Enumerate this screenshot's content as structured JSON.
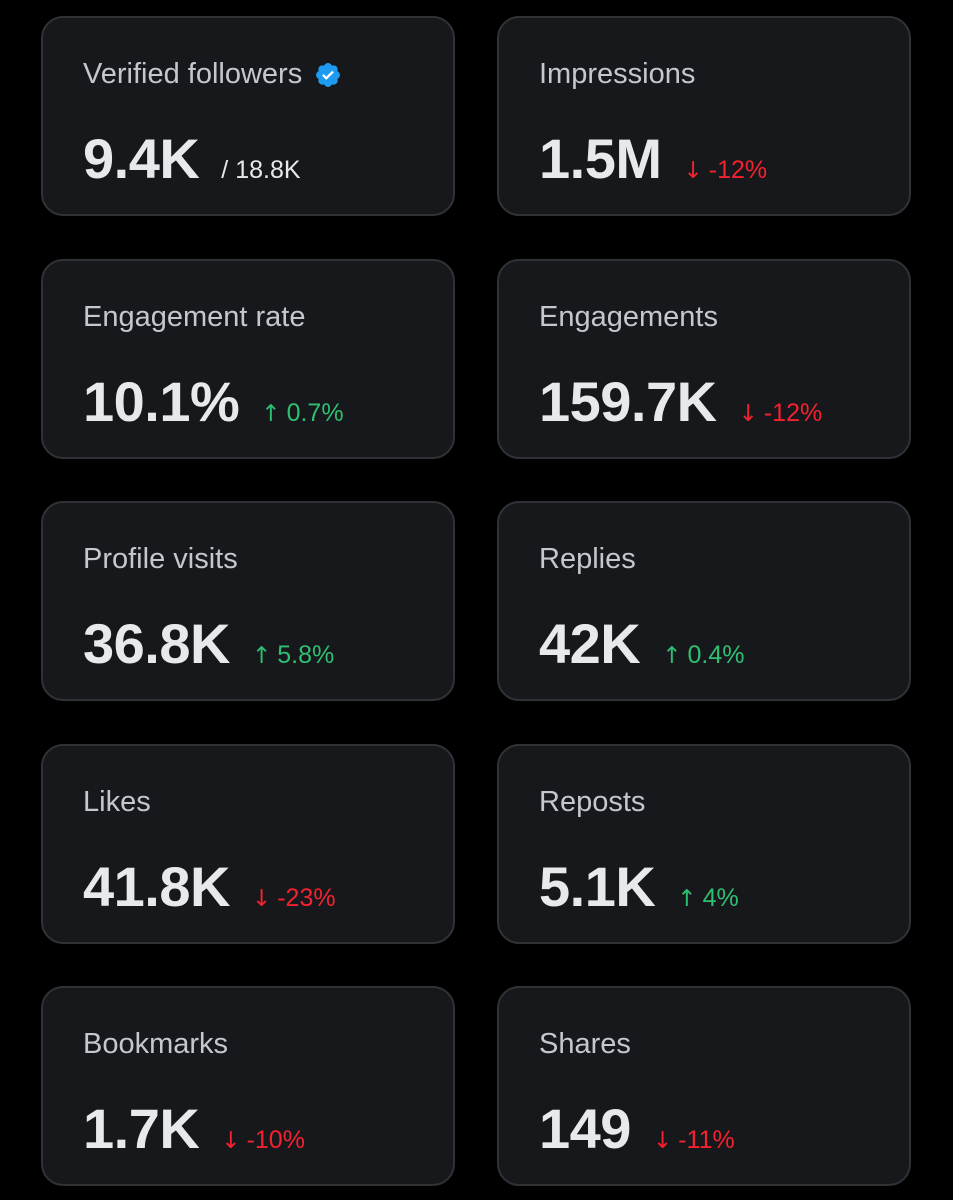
{
  "colors": {
    "background": "#000000",
    "card": "#16181c",
    "card_border": "#2f3336",
    "label": "#c4c7cb",
    "value": "#e7e9ea",
    "up": "#2fbf71",
    "down": "#f4212e",
    "verified_badge": "#1d9bf0"
  },
  "metrics": {
    "verified_followers": {
      "label": "Verified followers",
      "icon": "verified-badge-icon",
      "value": "9.4K",
      "total": "/ 18.8K"
    },
    "impressions": {
      "label": "Impressions",
      "value": "1.5M",
      "arrow": "↓",
      "change": "-12%",
      "direction": "down"
    },
    "engagement_rate": {
      "label": "Engagement rate",
      "value": "10.1%",
      "arrow": "↑",
      "change": "0.7%",
      "direction": "up"
    },
    "engagements": {
      "label": "Engagements",
      "value": "159.7K",
      "arrow": "↓",
      "change": "-12%",
      "direction": "down"
    },
    "profile_visits": {
      "label": "Profile visits",
      "value": "36.8K",
      "arrow": "↑",
      "change": "5.8%",
      "direction": "up"
    },
    "replies": {
      "label": "Replies",
      "value": "42K",
      "arrow": "↑",
      "change": "0.4%",
      "direction": "up"
    },
    "likes": {
      "label": "Likes",
      "value": "41.8K",
      "arrow": "↓",
      "change": "-23%",
      "direction": "down"
    },
    "reposts": {
      "label": "Reposts",
      "value": "5.1K",
      "arrow": "↑",
      "change": "4%",
      "direction": "up"
    },
    "bookmarks": {
      "label": "Bookmarks",
      "value": "1.7K",
      "arrow": "↓",
      "change": "-10%",
      "direction": "down"
    },
    "shares": {
      "label": "Shares",
      "value": "149",
      "arrow": "↓",
      "change": "-11%",
      "direction": "down"
    }
  }
}
